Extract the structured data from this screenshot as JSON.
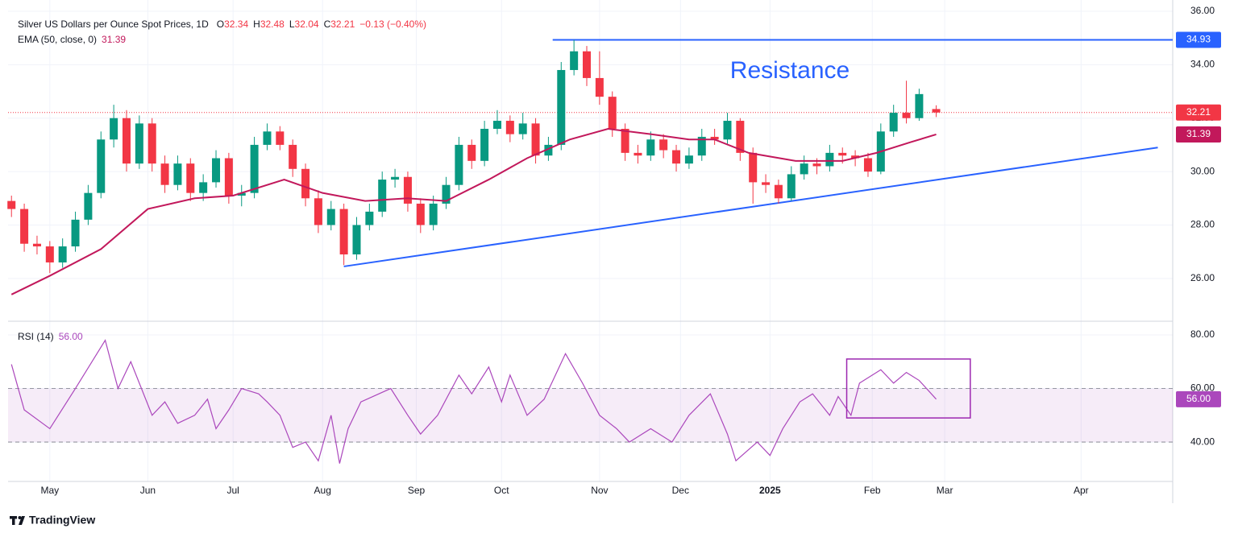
{
  "chart_data": {
    "type": "candlestick",
    "title": "Silver US Dollars per Ounce Spot Prices, 1D",
    "header": [
      {
        "key": "O",
        "value": "32.34"
      },
      {
        "key": "H",
        "value": "32.48"
      },
      {
        "key": "L",
        "value": "32.04"
      },
      {
        "key": "C",
        "value": "32.21"
      }
    ],
    "change": "−0.13 (−0.40%)",
    "up_color": "#089981",
    "down_color": "#f23645",
    "xlim": [
      -0.8,
      272.5
    ],
    "ylim": [
      24.43,
      36.42
    ],
    "yticks": [
      {
        "value": 26,
        "label": "26.00"
      },
      {
        "value": 28,
        "label": "28.00"
      },
      {
        "value": 30,
        "label": "30.00"
      },
      {
        "value": 32,
        "label": "32.00"
      },
      {
        "value": 34,
        "label": "34.00"
      },
      {
        "value": 36,
        "label": "36.00"
      }
    ],
    "xticks": [
      {
        "value": 9,
        "label": "May"
      },
      {
        "value": 32,
        "label": "Jun"
      },
      {
        "value": 52,
        "label": "Jul"
      },
      {
        "value": 73,
        "label": "Aug"
      },
      {
        "value": 95,
        "label": "Sep"
      },
      {
        "value": 115,
        "label": "Oct"
      },
      {
        "value": 138,
        "label": "Nov"
      },
      {
        "value": 157,
        "label": "Dec"
      },
      {
        "value": 178,
        "label": "2025",
        "bold": true
      },
      {
        "value": 202,
        "label": "Feb"
      },
      {
        "value": 219,
        "label": "Mar"
      },
      {
        "value": 251,
        "label": "Apr"
      }
    ],
    "candles": {
      "x": [
        0,
        3,
        6,
        9,
        12,
        15,
        18,
        21,
        24,
        27,
        30,
        33,
        36,
        39,
        42,
        45,
        48,
        51,
        54,
        57,
        60,
        63,
        66,
        69,
        72,
        75,
        78,
        81,
        84,
        87,
        90,
        93,
        96,
        99,
        102,
        105,
        108,
        111,
        114,
        117,
        120,
        123,
        126,
        129,
        132,
        135,
        138,
        141,
        144,
        147,
        150,
        153,
        156,
        159,
        162,
        165,
        168,
        171,
        174,
        177,
        180,
        183,
        186,
        189,
        192,
        195,
        198,
        201,
        204,
        207,
        210,
        213,
        217
      ],
      "ohlc": [
        [
          28.9,
          29.1,
          28.3,
          28.6
        ],
        [
          28.6,
          28.8,
          27.0,
          27.3
        ],
        [
          27.3,
          27.6,
          26.9,
          27.2
        ],
        [
          27.2,
          27.4,
          26.2,
          26.6
        ],
        [
          26.6,
          27.5,
          26.4,
          27.2
        ],
        [
          27.2,
          28.5,
          27.0,
          28.2
        ],
        [
          28.2,
          29.5,
          28.0,
          29.2
        ],
        [
          29.2,
          31.5,
          29.0,
          31.2
        ],
        [
          31.2,
          32.5,
          30.9,
          32.0
        ],
        [
          32.0,
          32.3,
          30.0,
          30.3
        ],
        [
          30.3,
          32.1,
          30.1,
          31.8
        ],
        [
          31.8,
          32.0,
          30.0,
          30.3
        ],
        [
          30.3,
          30.6,
          29.2,
          29.5
        ],
        [
          29.5,
          30.6,
          29.3,
          30.3
        ],
        [
          30.3,
          30.5,
          28.9,
          29.2
        ],
        [
          29.2,
          29.9,
          28.9,
          29.6
        ],
        [
          29.6,
          30.8,
          29.4,
          30.5
        ],
        [
          30.5,
          30.7,
          28.8,
          29.1
        ],
        [
          29.1,
          29.5,
          28.7,
          29.2
        ],
        [
          29.2,
          31.3,
          29.0,
          31.0
        ],
        [
          31.0,
          31.8,
          30.8,
          31.5
        ],
        [
          31.5,
          31.7,
          30.8,
          31.0
        ],
        [
          31.0,
          31.2,
          29.8,
          30.1
        ],
        [
          30.1,
          30.3,
          28.7,
          29.0
        ],
        [
          29.0,
          29.3,
          27.7,
          28.0
        ],
        [
          28.0,
          28.9,
          27.8,
          28.6
        ],
        [
          28.6,
          28.8,
          26.5,
          26.9
        ],
        [
          26.9,
          28.3,
          26.7,
          28.0
        ],
        [
          28.0,
          28.8,
          27.8,
          28.5
        ],
        [
          28.5,
          30.0,
          28.3,
          29.7
        ],
        [
          29.7,
          30.1,
          29.4,
          29.8
        ],
        [
          29.8,
          30.0,
          28.5,
          28.8
        ],
        [
          28.8,
          29.0,
          27.7,
          28.0
        ],
        [
          28.0,
          29.1,
          27.8,
          28.8
        ],
        [
          28.8,
          29.8,
          28.6,
          29.5
        ],
        [
          29.5,
          31.3,
          29.3,
          31.0
        ],
        [
          31.0,
          31.2,
          30.1,
          30.4
        ],
        [
          30.4,
          31.9,
          30.2,
          31.6
        ],
        [
          31.6,
          32.3,
          31.4,
          31.9
        ],
        [
          31.9,
          32.1,
          31.1,
          31.4
        ],
        [
          31.4,
          32.2,
          31.2,
          31.8
        ],
        [
          31.8,
          32.0,
          30.3,
          30.6
        ],
        [
          30.6,
          31.3,
          30.4,
          31.0
        ],
        [
          31.0,
          34.1,
          30.8,
          33.8
        ],
        [
          33.8,
          34.93,
          33.6,
          34.5
        ],
        [
          34.5,
          34.7,
          33.2,
          33.5
        ],
        [
          33.5,
          34.5,
          32.5,
          32.8
        ],
        [
          32.8,
          33.0,
          31.3,
          31.6
        ],
        [
          31.6,
          31.8,
          30.4,
          30.7
        ],
        [
          30.7,
          31.0,
          30.3,
          30.6
        ],
        [
          30.6,
          31.5,
          30.4,
          31.2
        ],
        [
          31.2,
          31.4,
          30.5,
          30.8
        ],
        [
          30.8,
          31.0,
          30.0,
          30.3
        ],
        [
          30.3,
          30.9,
          30.1,
          30.6
        ],
        [
          30.6,
          31.6,
          30.4,
          31.3
        ],
        [
          31.3,
          31.6,
          31.0,
          31.2
        ],
        [
          31.2,
          32.2,
          31.0,
          31.9
        ],
        [
          31.9,
          32.0,
          30.4,
          30.7
        ],
        [
          30.7,
          30.9,
          28.8,
          29.6
        ],
        [
          29.6,
          29.9,
          29.2,
          29.5
        ],
        [
          29.5,
          29.7,
          28.8,
          29.0
        ],
        [
          29.0,
          30.2,
          28.9,
          29.9
        ],
        [
          29.9,
          30.6,
          29.7,
          30.3
        ],
        [
          30.3,
          30.5,
          29.9,
          30.2
        ],
        [
          30.2,
          31.0,
          30.0,
          30.7
        ],
        [
          30.7,
          30.9,
          30.3,
          30.6
        ],
        [
          30.6,
          30.8,
          30.2,
          30.5
        ],
        [
          30.5,
          30.7,
          29.8,
          30.0
        ],
        [
          30.0,
          31.8,
          29.9,
          31.5
        ],
        [
          31.5,
          32.5,
          31.3,
          32.2
        ],
        [
          32.2,
          33.4,
          31.8,
          32.0
        ],
        [
          32.0,
          33.1,
          31.9,
          32.9
        ],
        [
          32.34,
          32.48,
          32.04,
          32.21
        ]
      ]
    },
    "last_price": {
      "value": 32.21,
      "label": "32.21",
      "color": "#f23645"
    },
    "ema": {
      "name": "EMA (50, close, 0)",
      "color": "#c2185b",
      "label": "31.39",
      "x": [
        0,
        9,
        21,
        32,
        43,
        52,
        64,
        73,
        83,
        93,
        102,
        112,
        121,
        131,
        140,
        150,
        159,
        165,
        173,
        184,
        195,
        203,
        211,
        217
      ],
      "values": [
        25.4,
        26.1,
        27.1,
        28.6,
        29.0,
        29.1,
        29.7,
        29.2,
        28.9,
        29.0,
        28.9,
        29.7,
        30.5,
        31.2,
        31.6,
        31.4,
        31.2,
        31.2,
        30.7,
        30.4,
        30.4,
        30.7,
        31.1,
        31.39
      ]
    },
    "resistance": {
      "text": "Resistance",
      "x": 127,
      "level": 34.93,
      "label": "34.93",
      "color": "#2962ff"
    },
    "support": {
      "x": [
        78,
        269
      ],
      "y": [
        26.45,
        30.9
      ],
      "color": "#2962ff"
    },
    "rsi": {
      "name": "RSI (14)",
      "label": "56.00",
      "color": "#ab47bc",
      "ylim": [
        25.3,
        84.8
      ],
      "yticks": [
        {
          "value": 40,
          "label": "40.00"
        },
        {
          "value": 60,
          "label": "60.00"
        },
        {
          "value": 80,
          "label": "80.00"
        }
      ],
      "band": [
        40,
        60
      ],
      "x": [
        0,
        3,
        9,
        15,
        22,
        25,
        28,
        33,
        36,
        39,
        43,
        46,
        48,
        51,
        54,
        58,
        60,
        63,
        66,
        69,
        72,
        75,
        77,
        79,
        82,
        89,
        93,
        96,
        100,
        105,
        108,
        112,
        115,
        117,
        121,
        125,
        130,
        134,
        138,
        142,
        145,
        150,
        155,
        159,
        164,
        168,
        170,
        175,
        178,
        181,
        185,
        188,
        192,
        194,
        197,
        199,
        204,
        207,
        210,
        213,
        217
      ],
      "values": [
        69,
        52,
        45,
        60,
        78,
        60,
        70,
        50,
        55,
        47,
        50,
        56,
        45,
        52,
        60,
        58,
        55,
        50,
        38,
        40,
        33,
        50,
        32,
        45,
        55,
        60,
        50,
        43,
        50,
        65,
        58,
        68,
        55,
        65,
        50,
        56,
        73,
        62,
        50,
        45,
        40,
        45,
        40,
        50,
        58,
        43,
        33,
        40,
        35,
        45,
        55,
        58,
        50,
        57,
        50,
        62,
        67,
        62,
        66,
        63,
        56
      ],
      "highlight": {
        "x": [
          196,
          225
        ],
        "y": [
          49,
          71
        ]
      }
    },
    "brand": "TradingView"
  }
}
